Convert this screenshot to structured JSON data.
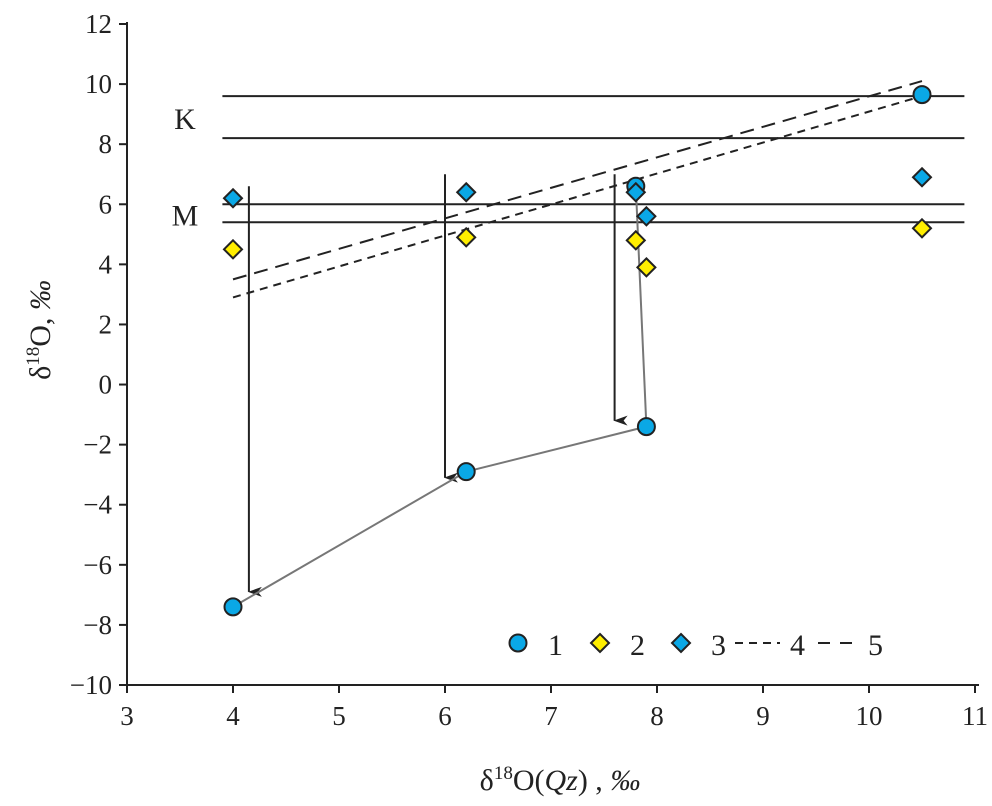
{
  "chart_data": {
    "type": "scatter",
    "xlim": [
      3,
      11
    ],
    "ylim": [
      -10,
      12
    ],
    "xticks": [
      3,
      4,
      5,
      6,
      7,
      8,
      9,
      10,
      11
    ],
    "yticks": [
      12,
      10,
      8,
      6,
      4,
      2,
      0,
      -2,
      -4,
      -6,
      -8,
      -10
    ],
    "grid": false,
    "legend_placement": "bottom-right",
    "xlabel": {
      "prefix": "δ",
      "sup": "18",
      "main": "O(",
      "italic": "Qz",
      "after": ") , ",
      "unit": "‰"
    },
    "ylabel": {
      "prefix": "δ",
      "sup": "18",
      "main": "O, ",
      "unit": "‰"
    },
    "series": [
      {
        "name": "1",
        "marker": "circle",
        "color": "#0aa8e6",
        "x": [
          4,
          6.2,
          7.9,
          7.8,
          10.5
        ],
        "y": [
          -7.4,
          -2.9,
          -1.4,
          6.6,
          9.65
        ]
      },
      {
        "name": "2",
        "marker": "diamond",
        "color": "#ffee00",
        "x": [
          4,
          6.2,
          7.8,
          7.9,
          10.5
        ],
        "y": [
          4.5,
          4.9,
          4.8,
          3.9,
          5.2
        ]
      },
      {
        "name": "3",
        "marker": "diamond",
        "color": "#0aa8e6",
        "x": [
          4,
          6.2,
          7.8,
          7.9,
          10.5
        ],
        "y": [
          6.2,
          6.4,
          6.4,
          5.6,
          6.9
        ]
      }
    ],
    "connector": {
      "color": "#777777",
      "x": [
        4,
        6.2,
        7.9,
        7.8
      ],
      "y": [
        -7.4,
        -2.9,
        -1.4,
        6.6
      ]
    },
    "lines": [
      {
        "name": "4",
        "style": "short-dash",
        "x": [
          4,
          10.5
        ],
        "y": [
          2.9,
          9.6
        ]
      },
      {
        "name": "5",
        "style": "long-dash",
        "x": [
          4,
          10.5
        ],
        "y": [
          3.5,
          10.1
        ]
      }
    ],
    "bands": [
      {
        "label": "K",
        "y": [
          8.2,
          9.6
        ],
        "x": [
          3.9,
          10.9
        ]
      },
      {
        "label": "M",
        "y": [
          5.4,
          6.0
        ],
        "x": [
          3.9,
          10.9
        ]
      }
    ],
    "arrows": [
      {
        "x": 4.15,
        "from": 6.6,
        "to": -6.9
      },
      {
        "x": 6.0,
        "from": 7.0,
        "to": -3.1
      },
      {
        "x": 7.6,
        "from": 7.0,
        "to": -1.2
      }
    ]
  }
}
